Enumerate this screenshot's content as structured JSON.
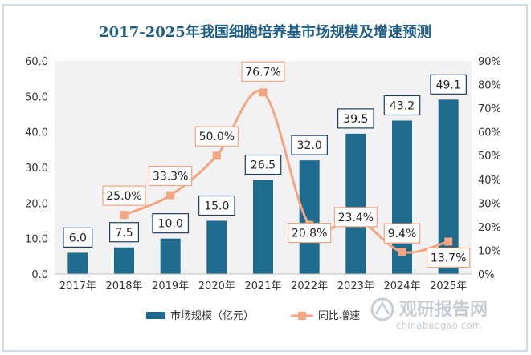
{
  "chart_data": {
    "type": "bar+line",
    "title": "2017-2025年我国细胞培养基市场规模及增速预测",
    "categories": [
      "2017年",
      "2018年",
      "2019年",
      "2020年",
      "2021年",
      "2022年",
      "2023年",
      "2024年",
      "2025年"
    ],
    "series": [
      {
        "name": "市场规模（亿元）",
        "type": "bar",
        "axis": "left",
        "values": [
          6.0,
          7.5,
          10.0,
          15.0,
          26.5,
          32.0,
          39.5,
          43.2,
          49.1
        ],
        "labels": [
          "6.0",
          "7.5",
          "10.0",
          "15.0",
          "26.5",
          "32.0",
          "39.5",
          "43.2",
          "49.1"
        ]
      },
      {
        "name": "同比增速",
        "type": "line",
        "axis": "right",
        "values": [
          null,
          25.0,
          33.3,
          50.0,
          76.7,
          20.8,
          23.4,
          9.4,
          13.7
        ],
        "labels": [
          "",
          "25.0%",
          "33.3%",
          "50.0%",
          "76.7%",
          "20.8%",
          "23.4%",
          "9.4%",
          "13.7%"
        ]
      }
    ],
    "y_left": {
      "range": [
        0,
        60
      ],
      "ticks": [
        "0.0",
        "10.0",
        "20.0",
        "30.0",
        "40.0",
        "50.0",
        "60.0"
      ]
    },
    "y_right": {
      "range": [
        0,
        90
      ],
      "ticks": [
        "0%",
        "10%",
        "20%",
        "30%",
        "40%",
        "50%",
        "60%",
        "70%",
        "80%",
        "90%"
      ]
    },
    "grid": false,
    "legend_position": "bottom",
    "colors": {
      "bar": "#1f6b8e",
      "line": "#f4a582",
      "title": "#1f5f86",
      "frame": "#cfdde6"
    },
    "watermark": {
      "brand": "观研报告网",
      "url": "chinabaogao.com"
    }
  }
}
